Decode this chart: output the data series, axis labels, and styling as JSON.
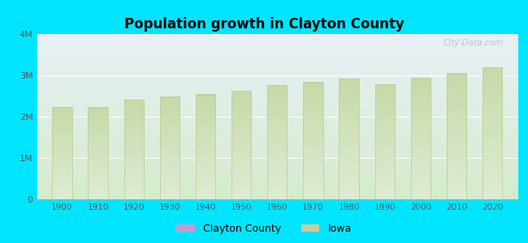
{
  "title": "Population growth in Clayton County",
  "years": [
    1900,
    1910,
    1920,
    1930,
    1940,
    1950,
    1960,
    1970,
    1980,
    1990,
    2000,
    2010,
    2020
  ],
  "iowa_population": [
    2231853,
    2224771,
    2404021,
    2470939,
    2538268,
    2621073,
    2757537,
    2824376,
    2913808,
    2776755,
    2926324,
    3046355,
    3190369
  ],
  "ylim": [
    0,
    4000000
  ],
  "ytick_labels": [
    "0",
    "1M",
    "2M",
    "3M",
    "4M"
  ],
  "bar_color_top": "#c8d9a8",
  "bar_color_bottom": "#deecd4",
  "bar_edge_color": "#b8cc90",
  "background_color": "#00e5ff",
  "plot_bg_top": "#eaf0f8",
  "plot_bg_bottom": "#d4eccc",
  "grid_color": "#ffffff",
  "legend_county_color": "#cc99cc",
  "legend_iowa_color": "#cccc99",
  "watermark": "City-Data.com",
  "bar_width": 5.5
}
